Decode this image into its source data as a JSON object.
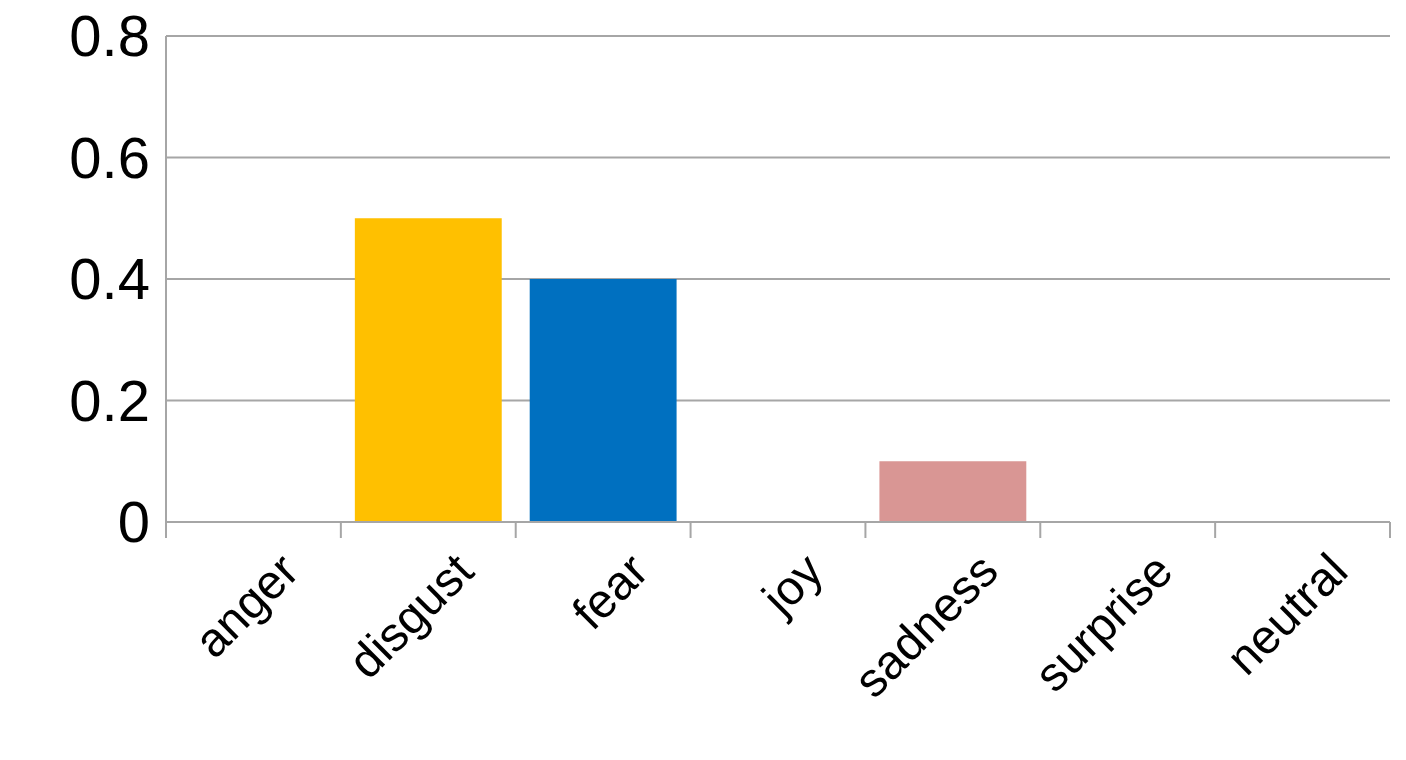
{
  "chart_data": {
    "type": "bar",
    "categories": [
      "anger",
      "disgust",
      "fear",
      "joy",
      "sadness",
      "surprise",
      "neutral"
    ],
    "values": [
      0,
      0.5,
      0.4,
      0,
      0.1,
      0,
      0
    ],
    "colors": [
      "#4472c4",
      "#ffc000",
      "#0070c0",
      "#70ad47",
      "#d99694",
      "#7030a0",
      "#a5a5a5"
    ],
    "ylim": [
      0,
      0.8
    ],
    "yticks": [
      0,
      0.2,
      0.4,
      0.6,
      0.8
    ],
    "grid": "y"
  }
}
